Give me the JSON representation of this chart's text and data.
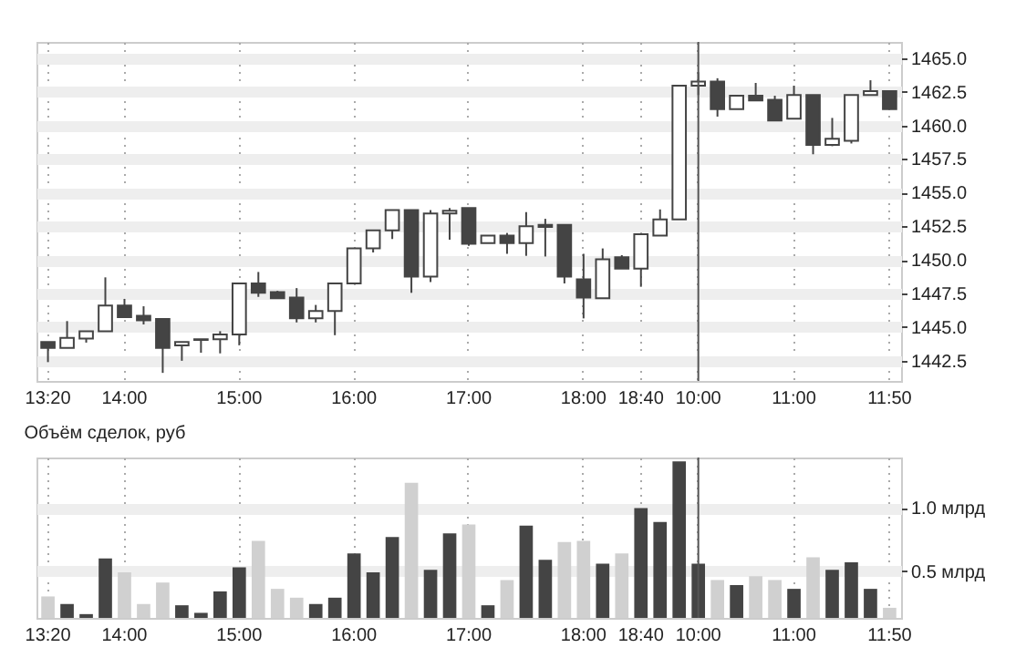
{
  "chart_data": [
    {
      "type": "candlestick",
      "color": "#444444",
      "categories": [
        "13:20",
        null,
        null,
        null,
        "14:00",
        null,
        null,
        null,
        null,
        null,
        "15:00",
        null,
        null,
        null,
        null,
        null,
        "16:00",
        null,
        null,
        null,
        null,
        null,
        "17:00",
        null,
        null,
        null,
        null,
        null,
        "18:00",
        null,
        null,
        "18:40",
        null,
        null,
        "10:00",
        null,
        null,
        null,
        null,
        "11:00",
        null,
        null,
        null,
        null,
        "11:50"
      ],
      "ohlc": [
        [
          1443.9,
          1443.9,
          1442.4,
          1443.45
        ],
        [
          1443.45,
          1445.45,
          1443.45,
          1444.2
        ],
        [
          1444.15,
          1444.7,
          1443.85,
          1444.7
        ],
        [
          1444.7,
          1448.7,
          1444.7,
          1446.6
        ],
        [
          1446.6,
          1447.1,
          1445.75,
          1445.75
        ],
        [
          1445.85,
          1446.55,
          1445.2,
          1445.5
        ],
        [
          1445.6,
          1445.6,
          1441.6,
          1443.45
        ],
        [
          1443.65,
          1443.9,
          1442.5,
          1443.9
        ],
        [
          1444.05,
          1444.1,
          1443.1,
          1444.1
        ],
        [
          1444.1,
          1444.7,
          1443.05,
          1444.45
        ],
        [
          1444.45,
          1448.25,
          1443.65,
          1448.25
        ],
        [
          1448.25,
          1449.1,
          1447.25,
          1447.55
        ],
        [
          1447.6,
          1447.7,
          1447.15,
          1447.15
        ],
        [
          1447.2,
          1447.9,
          1445.35,
          1445.65
        ],
        [
          1445.65,
          1446.65,
          1445.35,
          1446.2
        ],
        [
          1446.2,
          1448.25,
          1444.4,
          1448.25
        ],
        [
          1448.25,
          1450.85,
          1448.25,
          1450.85
        ],
        [
          1450.85,
          1452.2,
          1450.55,
          1452.2
        ],
        [
          1452.2,
          1453.7,
          1451.55,
          1453.7
        ],
        [
          1453.7,
          1453.7,
          1447.55,
          1448.75
        ],
        [
          1448.75,
          1453.7,
          1448.35,
          1453.45
        ],
        [
          1453.45,
          1453.85,
          1451.5,
          1453.65
        ],
        [
          1453.85,
          1453.85,
          1451.05,
          1451.2
        ],
        [
          1451.25,
          1451.8,
          1451.25,
          1451.8
        ],
        [
          1451.8,
          1452,
          1450.45,
          1451.25
        ],
        [
          1451.25,
          1453.55,
          1450.3,
          1452.5
        ],
        [
          1452.6,
          1453.05,
          1450.25,
          1452.45
        ],
        [
          1452.6,
          1452.6,
          1448.25,
          1448.75
        ],
        [
          1448.55,
          1450.45,
          1445.65,
          1447.2
        ],
        [
          1447.15,
          1450.85,
          1447.15,
          1450.05
        ],
        [
          1450.2,
          1450.35,
          1449.35,
          1449.35
        ],
        [
          1449.35,
          1451.9,
          1448,
          1451.9
        ],
        [
          1451.8,
          1453.75,
          1451.8,
          1453
        ],
        [
          1453,
          1462.95,
          1453,
          1462.95
        ],
        [
          1462.95,
          1463.95,
          1462.25,
          1463.25
        ],
        [
          1463.25,
          1463.5,
          1460.65,
          1461.2
        ],
        [
          1461.2,
          1462.25,
          1461.2,
          1462.2
        ],
        [
          1462.2,
          1463.15,
          1461.85,
          1461.85
        ],
        [
          1461.9,
          1462.2,
          1460.35,
          1460.35
        ],
        [
          1460.5,
          1462.95,
          1460.5,
          1462.25
        ],
        [
          1462.25,
          1462.25,
          1457.85,
          1458.55
        ],
        [
          1458.55,
          1460.55,
          1458.45,
          1459
        ],
        [
          1458.85,
          1462.25,
          1458.65,
          1462.25
        ],
        [
          1462.25,
          1463.35,
          1462.25,
          1462.55
        ],
        [
          1462.55,
          1462.55,
          1461.2,
          1461.2
        ]
      ],
      "ylim": [
        1441,
        1466.2
      ],
      "yticks": [
        {
          "value": 1442.5,
          "label": "1442.5"
        },
        {
          "value": 1445,
          "label": "1445.0"
        },
        {
          "value": 1447.5,
          "label": "1447.5"
        },
        {
          "value": 1450,
          "label": "1450.0"
        },
        {
          "value": 1452.5,
          "label": "1452.5"
        },
        {
          "value": 1455,
          "label": "1455.0"
        },
        {
          "value": 1457.5,
          "label": "1457.5"
        },
        {
          "value": 1460,
          "label": "1460.0"
        },
        {
          "value": 1462.5,
          "label": "1462.5"
        },
        {
          "value": 1465,
          "label": "1465.0"
        }
      ],
      "grid": true,
      "ref_lines": [
        {
          "axis": "x",
          "value": "10:00",
          "color": "#555555"
        }
      ]
    },
    {
      "type": "bar",
      "title": "Объём сделок, руб",
      "categories": [
        "13:20",
        null,
        null,
        null,
        "14:00",
        null,
        null,
        null,
        null,
        null,
        "15:00",
        null,
        null,
        null,
        null,
        null,
        "16:00",
        null,
        null,
        null,
        null,
        null,
        "17:00",
        null,
        null,
        null,
        null,
        null,
        "18:00",
        null,
        null,
        "18:40",
        null,
        null,
        "10:00",
        null,
        null,
        null,
        null,
        "11:00",
        null,
        null,
        null,
        null,
        "11:50"
      ],
      "values": [
        0.3,
        0.24,
        0.16,
        0.6,
        0.49,
        0.24,
        0.41,
        0.23,
        0.17,
        0.34,
        0.53,
        0.74,
        0.36,
        0.29,
        0.24,
        0.29,
        0.64,
        0.49,
        0.77,
        1.2,
        0.51,
        0.8,
        0.87,
        0.23,
        0.43,
        0.86,
        0.59,
        0.73,
        0.74,
        0.56,
        0.64,
        1.0,
        0.89,
        1.37,
        0.56,
        0.43,
        0.39,
        0.46,
        0.43,
        0.36,
        0.61,
        0.51,
        0.57,
        0.36,
        0.21
      ],
      "colors": [
        "#d0d0d0",
        "#444444",
        "#444444",
        "#444444",
        "#d0d0d0",
        "#d0d0d0",
        "#d0d0d0",
        "#444444",
        "#444444",
        "#444444",
        "#444444",
        "#d0d0d0",
        "#d0d0d0",
        "#d0d0d0",
        "#444444",
        "#444444",
        "#444444",
        "#444444",
        "#444444",
        "#d0d0d0",
        "#444444",
        "#444444",
        "#d0d0d0",
        "#444444",
        "#d0d0d0",
        "#444444",
        "#444444",
        "#d0d0d0",
        "#d0d0d0",
        "#444444",
        "#d0d0d0",
        "#444444",
        "#444444",
        "#444444",
        "#444444",
        "#d0d0d0",
        "#444444",
        "#d0d0d0",
        "#d0d0d0",
        "#444444",
        "#d0d0d0",
        "#444444",
        "#444444",
        "#444444",
        "#d0d0d0"
      ],
      "ylim": [
        0.13,
        1.4
      ],
      "yticks": [
        {
          "value": 0.5,
          "label": "0.5 млрд"
        },
        {
          "value": 1.0,
          "label": "1.0 млрд"
        }
      ],
      "grid": true,
      "ref_lines": [
        {
          "axis": "x",
          "value": "10:00",
          "color": "#555555"
        }
      ]
    }
  ]
}
